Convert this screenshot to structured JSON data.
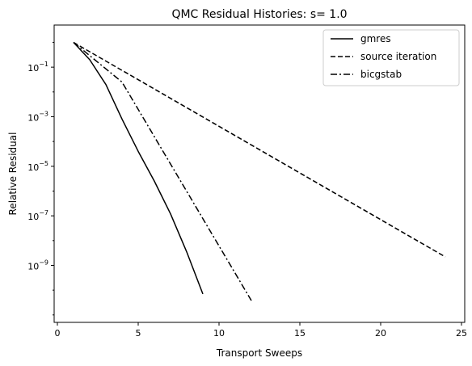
{
  "chart_data": {
    "type": "line",
    "title": "QMC Residual Histories: s= 1.0",
    "xlabel": "Transport Sweeps",
    "ylabel": "Relative Residual",
    "xlim": [
      -0.2,
      25.2
    ],
    "ylim_log10": [
      -11.3,
      0.7
    ],
    "yscale": "log",
    "grid": false,
    "legend_position": "top-right",
    "xticks": [
      {
        "value": 0,
        "label": "0"
      },
      {
        "value": 5,
        "label": "5"
      },
      {
        "value": 10,
        "label": "10"
      },
      {
        "value": 15,
        "label": "15"
      },
      {
        "value": 20,
        "label": "20"
      },
      {
        "value": 25,
        "label": "25"
      }
    ],
    "yticks": [
      {
        "exp": -1,
        "base": "10",
        "sup": "−1"
      },
      {
        "exp": -3,
        "base": "10",
        "sup": "−3"
      },
      {
        "exp": -5,
        "base": "10",
        "sup": "−5"
      },
      {
        "exp": -7,
        "base": "10",
        "sup": "−7"
      },
      {
        "exp": -9,
        "base": "10",
        "sup": "−9"
      }
    ],
    "series": [
      {
        "name": "gmres",
        "style": "solid",
        "color": "#000000",
        "x": [
          1,
          2,
          3,
          4,
          5,
          6,
          7,
          8,
          9
        ],
        "y": [
          1.0,
          0.2,
          0.02,
          0.0008,
          4e-05,
          2.5e-06,
          1.2e-07,
          3.5e-09,
          7e-11
        ]
      },
      {
        "name": "source iteration",
        "style": "dashed",
        "color": "#000000",
        "x": [
          1,
          24
        ],
        "y": [
          1.0,
          2.2e-09
        ]
      },
      {
        "name": "bicgstab",
        "style": "dashdot",
        "color": "#000000",
        "x": [
          1,
          4,
          12
        ],
        "y": [
          1.0,
          0.025,
          3.8e-11
        ]
      }
    ]
  }
}
